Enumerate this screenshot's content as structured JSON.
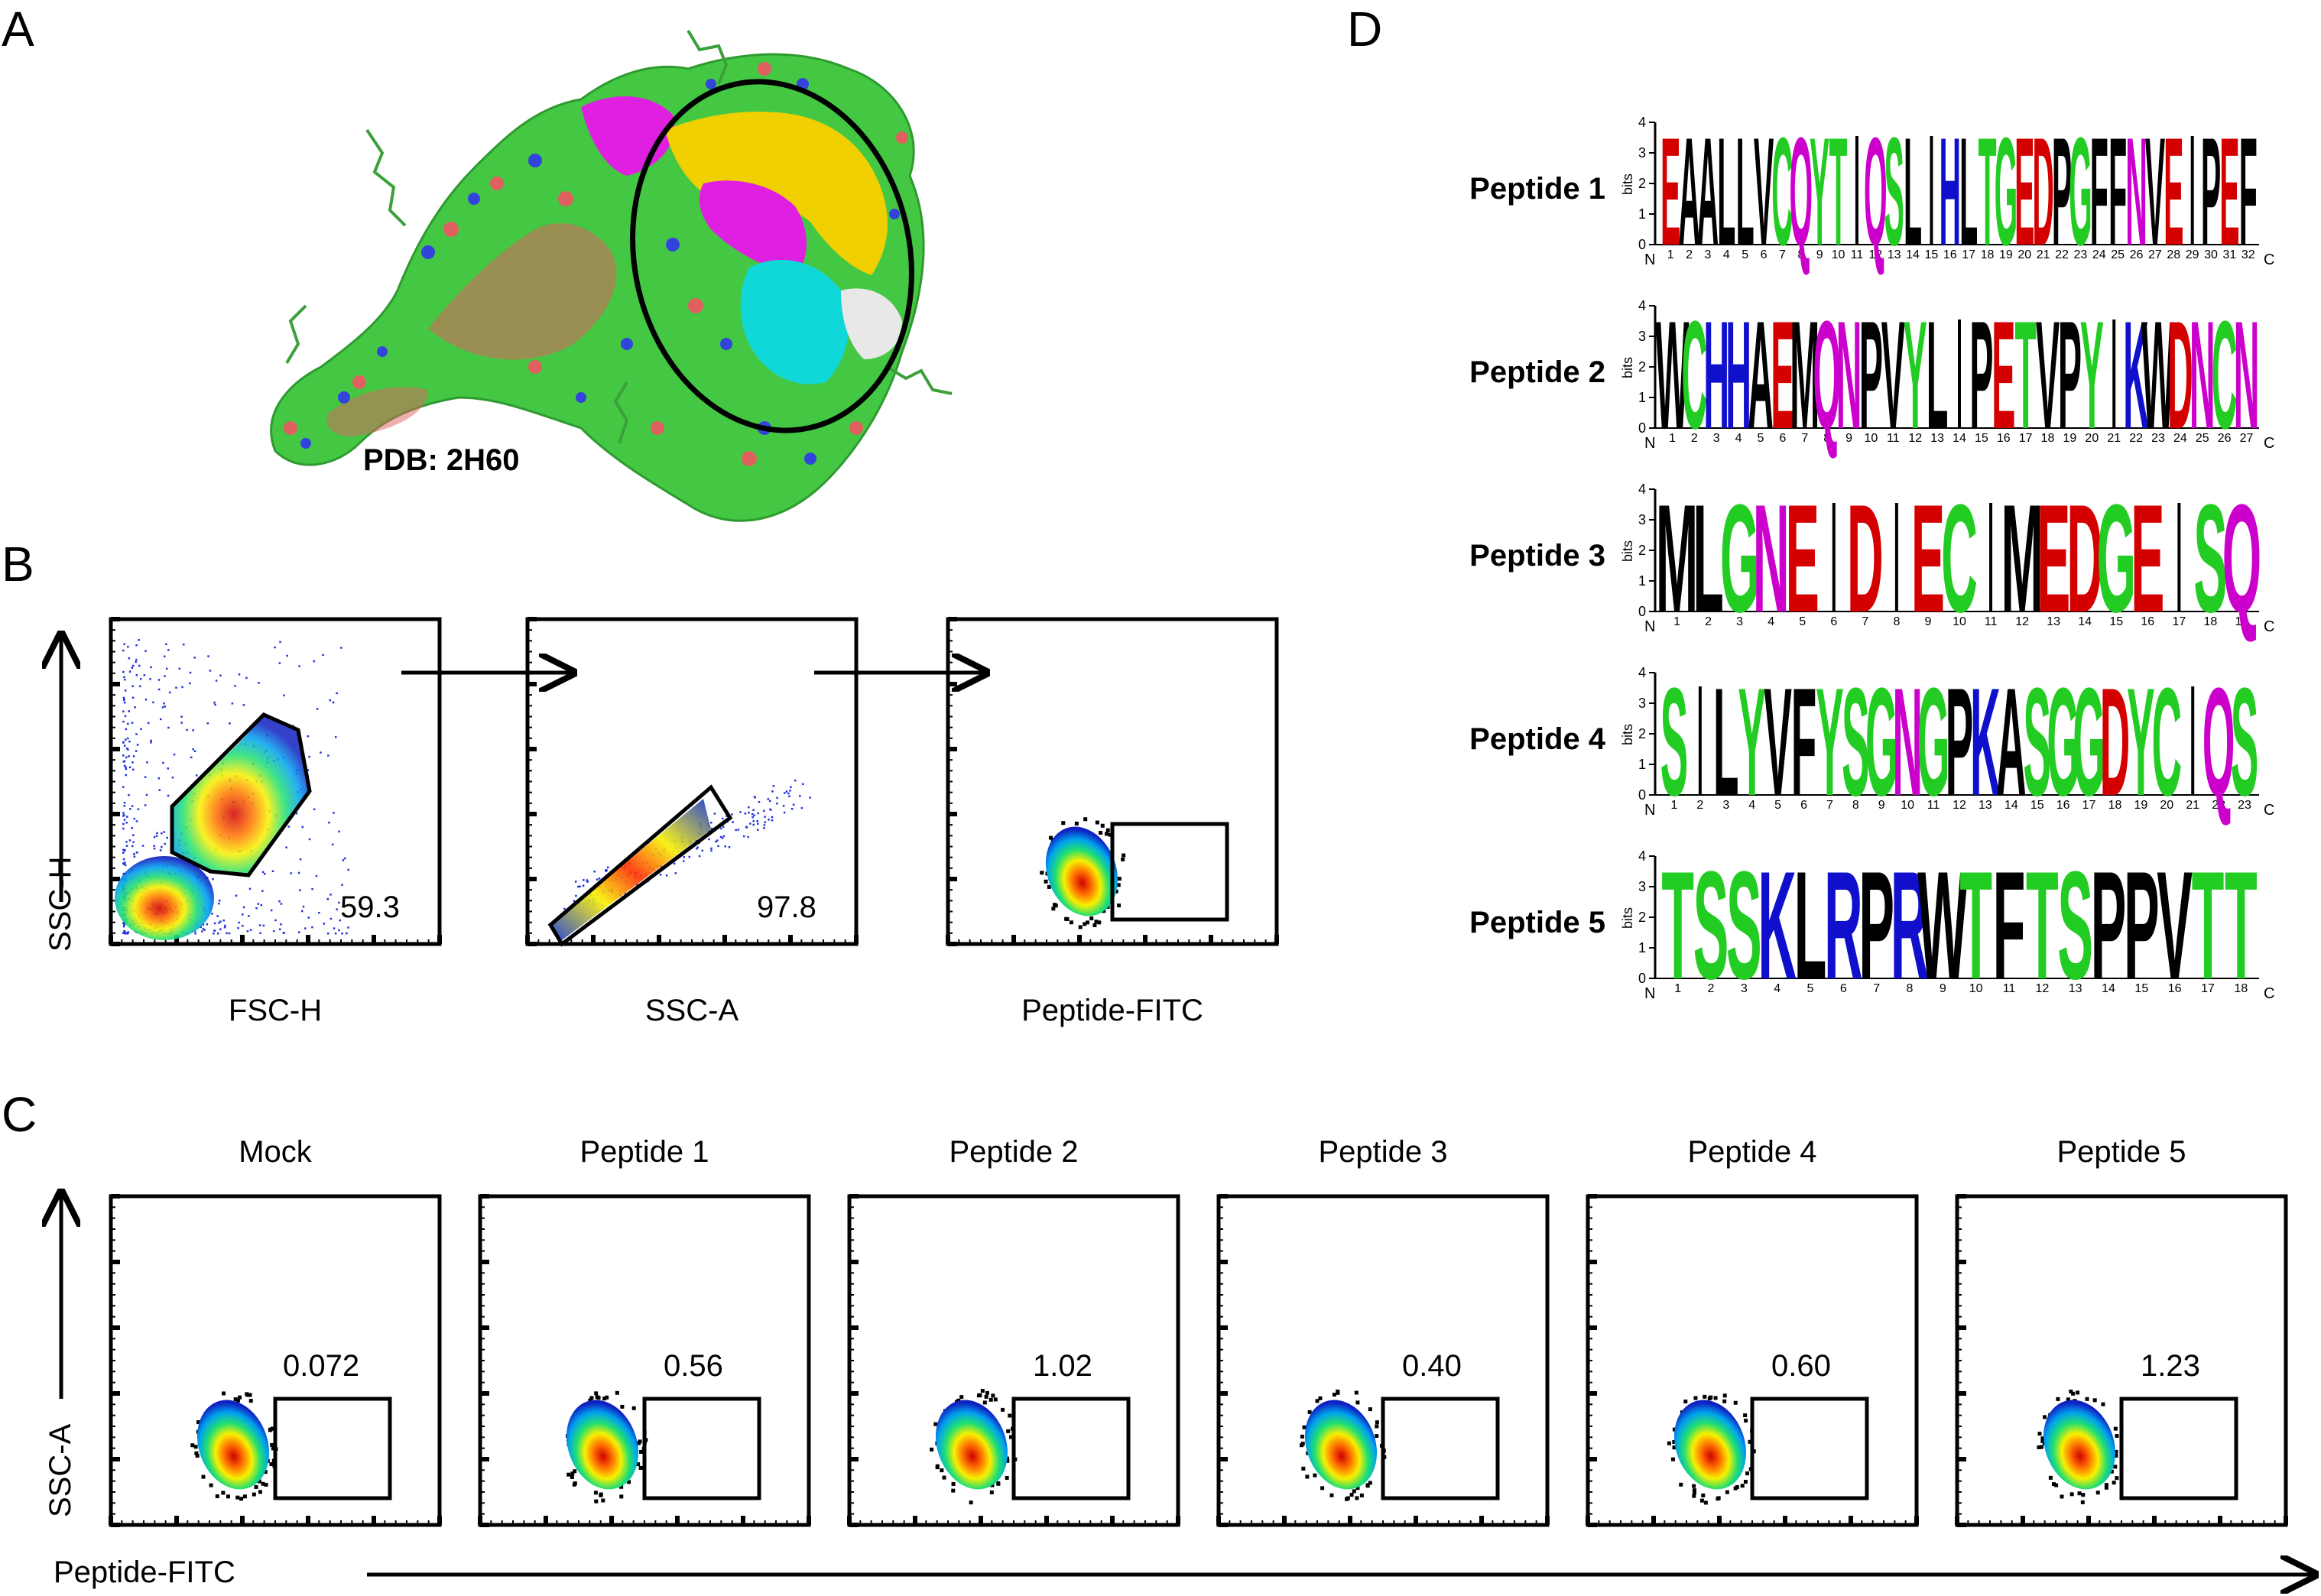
{
  "panel_labels": {
    "a": "A",
    "b": "B",
    "c": "C",
    "d": "D"
  },
  "panel_a": {
    "pdb_label": "PDB: 2H60"
  },
  "panel_b": {
    "y_axis_label": "SSC-H",
    "plots": [
      {
        "x_label": "FSC-H",
        "gate_value": "59.3"
      },
      {
        "x_label": "SSC-A",
        "gate_value": "97.8"
      },
      {
        "x_label": "Peptide-FITC",
        "gate_value": ""
      }
    ]
  },
  "panel_c": {
    "y_axis_label": "SSC-A",
    "x_axis_label": "Peptide-FITC",
    "plots": [
      {
        "title": "Mock",
        "gate_value": "0.072"
      },
      {
        "title": "Peptide 1",
        "gate_value": "0.56"
      },
      {
        "title": "Peptide 2",
        "gate_value": "1.02"
      },
      {
        "title": "Peptide 3",
        "gate_value": "0.40"
      },
      {
        "title": "Peptide 4",
        "gate_value": "0.60"
      },
      {
        "title": "Peptide 5",
        "gate_value": "1.23"
      }
    ]
  },
  "panel_d": {
    "axis_unit": "bits",
    "y_ticks": [
      "0",
      "1",
      "2",
      "3",
      "4"
    ],
    "n_label": "N",
    "c_label": "C",
    "logos": [
      {
        "label": "Peptide 1",
        "sequence": "EAALLVCQYT|QSL|HLTGEDPGFFNVE|PEF"
      },
      {
        "label": "Peptide 2",
        "sequence": "WCHHAEMQNPVYL|PETVPY|KWDNCN"
      },
      {
        "label": "Peptide 3",
        "sequence": "MLGNE|D|EC|MEDGE|SQ"
      },
      {
        "label": "Peptide 4",
        "sequence": "S|LYVFYSGNGPKASGGDYC|QS"
      },
      {
        "label": "Peptide 5",
        "sequence": "TSSKLRPRWTFTSPPVTT"
      }
    ]
  },
  "colors": {
    "acidic": "#d40000",
    "polar": "#22cc22",
    "basic": "#1010cc",
    "amide": "#cc00cc",
    "hydrophobic": "#000000",
    "protein_green": "#44c844",
    "protein_red": "#e06060",
    "protein_blue": "#3344dd",
    "magenta_region": "#e020e0",
    "yellow_region": "#f0d000",
    "cyan_region": "#10d8d8",
    "white_region": "#e8e8e8"
  }
}
